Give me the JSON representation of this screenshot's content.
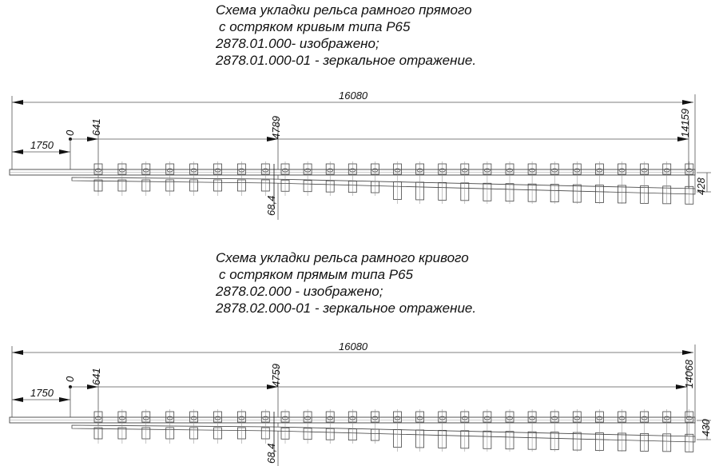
{
  "diagrams": [
    {
      "title_lines": [
        "Схема укладки рельса рамного прямого",
        "с остряком кривым типа Р65",
        "2878.01.000- изображено;",
        "2878.01.000-01 - зеркальное отражение."
      ],
      "dims": {
        "total": "16080",
        "offset": "1750",
        "zero": "0",
        "first": "641",
        "joint": "4789",
        "end": "14159",
        "gap": "68,4",
        "spread": "428"
      }
    },
    {
      "title_lines": [
        "Схема укладки рельса рамного кривого",
        "с остряком прямым типа Р65",
        "2878.02.000 - изображено;",
        "2878.02.000-01 - зеркальное отражение."
      ],
      "dims": {
        "total": "16080",
        "offset": "1750",
        "zero": "0",
        "first": "641",
        "joint": "4759",
        "end": "14068",
        "gap": "68,4",
        "spread": "430"
      }
    }
  ]
}
